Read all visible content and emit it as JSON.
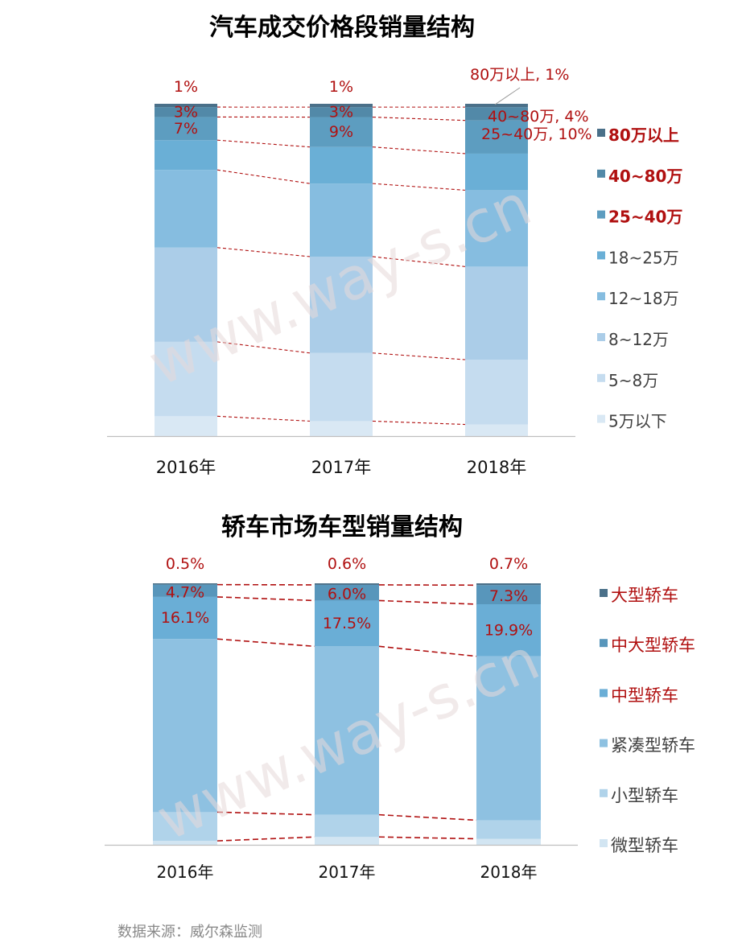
{
  "chart_data": [
    {
      "type": "bar",
      "stacked": true,
      "normalized": true,
      "title": "汽车成交价格段销量结构",
      "categories": [
        "2016年",
        "2017年",
        "2018年"
      ],
      "series": [
        {
          "name": "5万以下",
          "values": [
            6,
            4.5,
            3.5
          ],
          "color": "#d9e8f4"
        },
        {
          "name": "5~8万",
          "values": [
            22.5,
            20.5,
            19.5
          ],
          "color": "#c5dcef"
        },
        {
          "name": "8~12万",
          "values": [
            28.5,
            29,
            28
          ],
          "color": "#abcde8"
        },
        {
          "name": "12~18万",
          "values": [
            23.5,
            22,
            23
          ],
          "color": "#86bde0"
        },
        {
          "name": "18~25万",
          "values": [
            9,
            11,
            11
          ],
          "color": "#6aafd6"
        },
        {
          "name": "25~40万",
          "values": [
            7,
            9,
            10
          ],
          "color": "#5d9dc0"
        },
        {
          "name": "40~80万",
          "values": [
            3,
            3,
            4
          ],
          "color": "#5289a8"
        },
        {
          "name": "80万以上",
          "values": [
            1,
            1,
            1
          ],
          "color": "#4a7089"
        }
      ],
      "labels": [
        {
          "series": 7,
          "category": 0,
          "text": "1%"
        },
        {
          "series": 6,
          "category": 0,
          "text": "3%"
        },
        {
          "series": 5,
          "category": 0,
          "text": "7%"
        },
        {
          "series": 7,
          "category": 1,
          "text": "1%"
        },
        {
          "series": 6,
          "category": 1,
          "text": "3%"
        },
        {
          "series": 5,
          "category": 1,
          "text": "9%"
        },
        {
          "series": 7,
          "category": 2,
          "text": "80万以上, 1%"
        },
        {
          "series": 6,
          "category": 2,
          "text": "40~80万, 4%"
        },
        {
          "series": 5,
          "category": 2,
          "text": "25~40万, 10%"
        }
      ],
      "legend": {
        "position": "right",
        "order": "top-to-bottom",
        "items": [
          "80万以上",
          "40~80万",
          "25~40万",
          "18~25万",
          "12~18万",
          "8~12万",
          "5~8万",
          "5万以下"
        ],
        "highlighted": [
          "80万以上",
          "40~80万",
          "25~40万"
        ]
      },
      "connectors": "dashed red lines between adjacent bars at segment boundaries"
    },
    {
      "type": "bar",
      "stacked": true,
      "normalized": true,
      "title": "轿车市场车型销量结构",
      "categories": [
        "2016年",
        "2017年",
        "2018年"
      ],
      "series": [
        {
          "name": "微型轿车",
          "values": [
            1.5,
            3,
            2.3
          ],
          "color": "#d2e5f2"
        },
        {
          "name": "小型轿车",
          "values": [
            11,
            8.5,
            7.1
          ],
          "color": "#b0d3ea"
        },
        {
          "name": "紧凑型轿车",
          "values": [
            66.2,
            64.4,
            62.7
          ],
          "color": "#8ec1e1"
        },
        {
          "name": "中型轿车",
          "values": [
            16.1,
            17.5,
            19.9
          ],
          "color": "#6aaed6"
        },
        {
          "name": "中大型轿车",
          "values": [
            4.7,
            6.0,
            7.3
          ],
          "color": "#5896bb"
        },
        {
          "name": "大型轿车",
          "values": [
            0.5,
            0.6,
            0.7
          ],
          "color": "#4a7089"
        }
      ],
      "labels": [
        {
          "series": 5,
          "category": 0,
          "text": "0.5%"
        },
        {
          "series": 4,
          "category": 0,
          "text": "4.7%"
        },
        {
          "series": 3,
          "category": 0,
          "text": "16.1%"
        },
        {
          "series": 5,
          "category": 1,
          "text": "0.6%"
        },
        {
          "series": 4,
          "category": 1,
          "text": "6.0%"
        },
        {
          "series": 3,
          "category": 1,
          "text": "17.5%"
        },
        {
          "series": 5,
          "category": 2,
          "text": "0.7%"
        },
        {
          "series": 4,
          "category": 2,
          "text": "7.3%"
        },
        {
          "series": 3,
          "category": 2,
          "text": "19.9%"
        }
      ],
      "legend": {
        "position": "right",
        "order": "top-to-bottom",
        "items": [
          "大型轿车",
          "中大型轿车",
          "中型轿车",
          "紧凑型轿车",
          "小型轿车",
          "微型轿车"
        ],
        "highlighted": [
          "大型轿车",
          "中大型轿车",
          "中型轿车"
        ]
      },
      "connectors": "dashed red lines between adjacent bars at segment boundaries"
    }
  ],
  "footer": {
    "source": "数据来源：威尔森监测"
  },
  "watermark": "www.way-s.cn",
  "colors": {
    "label_red": "#b01010",
    "legend_dark": "#404040",
    "connector": "#b01010",
    "axis": "#bfbfbf"
  }
}
